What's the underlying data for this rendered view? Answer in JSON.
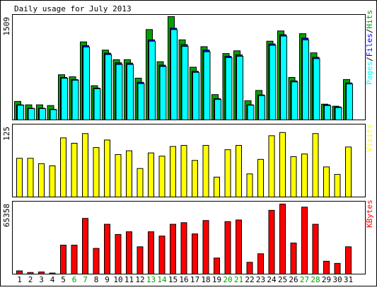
{
  "title": "Daily usage for July 2013",
  "colors": {
    "background": "#FFFFFF",
    "panel_background": "#FFFFFF",
    "hits": "#00A000",
    "files": "#0000FF",
    "pages": "#00FFFF",
    "visits": "#FFFF00",
    "kbytes": "#FF0000",
    "weekend_day_label": "#00A000",
    "weekday_day_label": "#000000"
  },
  "chart_data": [
    {
      "type": "bar",
      "panel": "hits_files_pages",
      "y_max_label": "1509",
      "ylim": [
        0,
        1509
      ],
      "legend": {
        "placement": "right",
        "pages": "Pages",
        "sep1": "/",
        "files": "Files",
        "sep2": "/",
        "hits": "Hits"
      },
      "categories": [
        "1",
        "2",
        "3",
        "4",
        "5",
        "6",
        "7",
        "8",
        "9",
        "10",
        "11",
        "12",
        "13",
        "14",
        "15",
        "16",
        "17",
        "18",
        "19",
        "20",
        "21",
        "22",
        "23",
        "24",
        "25",
        "26",
        "27",
        "28",
        "29",
        "30",
        "31"
      ],
      "weekend": [
        6,
        7,
        13,
        14,
        20,
        21,
        27,
        28
      ],
      "series": [
        {
          "name": "Hits",
          "values": [
            270,
            220,
            220,
            210,
            660,
            630,
            1140,
            500,
            1020,
            880,
            880,
            610,
            1320,
            850,
            1509,
            1170,
            770,
            1070,
            370,
            970,
            1010,
            280,
            430,
            1150,
            1300,
            620,
            1260,
            980,
            230,
            200,
            590
          ]
        },
        {
          "name": "Files",
          "values": [
            220,
            170,
            170,
            155,
            620,
            590,
            1085,
            465,
            975,
            835,
            830,
            550,
            1170,
            800,
            1340,
            1100,
            710,
            1020,
            310,
            930,
            950,
            220,
            365,
            1110,
            1245,
            570,
            1195,
            915,
            220,
            190,
            540
          ]
        },
        {
          "name": "Pages",
          "values": [
            215,
            165,
            165,
            150,
            610,
            580,
            1065,
            455,
            955,
            810,
            810,
            530,
            1150,
            780,
            1320,
            1075,
            695,
            995,
            300,
            910,
            930,
            215,
            355,
            1090,
            1225,
            555,
            1170,
            895,
            210,
            180,
            525
          ]
        }
      ]
    },
    {
      "type": "bar",
      "panel": "visits",
      "y_max_label": "125",
      "ylim": [
        0,
        125
      ],
      "legend": {
        "placement": "right",
        "visits": "Visits"
      },
      "categories": [
        "1",
        "2",
        "3",
        "4",
        "5",
        "6",
        "7",
        "8",
        "9",
        "10",
        "11",
        "12",
        "13",
        "14",
        "15",
        "16",
        "17",
        "18",
        "19",
        "20",
        "21",
        "22",
        "23",
        "24",
        "25",
        "26",
        "27",
        "28",
        "29",
        "30",
        "31"
      ],
      "series": [
        {
          "name": "Visits",
          "values": [
            72,
            72,
            62,
            58,
            110,
            100,
            118,
            92,
            106,
            79,
            86,
            53,
            82,
            76,
            94,
            96,
            68,
            96,
            37,
            88,
            96,
            43,
            70,
            114,
            120,
            75,
            80,
            118,
            56,
            42,
            93
          ]
        }
      ]
    },
    {
      "type": "bar",
      "panel": "kbytes",
      "y_max_label": "65358",
      "ylim": [
        0,
        65358
      ],
      "legend": {
        "placement": "right",
        "kbytes": "KBytes"
      },
      "categories": [
        "1",
        "2",
        "3",
        "4",
        "5",
        "6",
        "7",
        "8",
        "9",
        "10",
        "11",
        "12",
        "13",
        "14",
        "15",
        "16",
        "17",
        "18",
        "19",
        "20",
        "21",
        "22",
        "23",
        "24",
        "25",
        "26",
        "27",
        "28",
        "29",
        "30",
        "31"
      ],
      "series": [
        {
          "name": "KBytes",
          "values": [
            3000,
            1500,
            2000,
            1000,
            27000,
            27000,
            52000,
            24000,
            46500,
            37000,
            39500,
            25500,
            39500,
            35500,
            46500,
            48000,
            37500,
            50000,
            15000,
            49000,
            50500,
            11000,
            19000,
            59500,
            65358,
            29000,
            62500,
            46500,
            12000,
            10000,
            25500
          ]
        }
      ]
    }
  ]
}
